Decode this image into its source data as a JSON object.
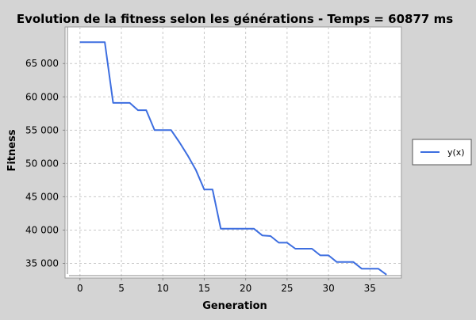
{
  "chart_data": {
    "type": "line",
    "title": "Evolution de la fitness selon les générations - Temps = 60877 ms",
    "xlabel": "Generation",
    "ylabel": "Fitness",
    "xlim": [
      -1.8,
      38.8
    ],
    "ylim": [
      32800,
      70500
    ],
    "xticks": [
      0,
      5,
      10,
      15,
      20,
      25,
      30,
      35
    ],
    "yticks": [
      35000,
      40000,
      45000,
      50000,
      55000,
      60000,
      65000
    ],
    "ytick_labels": [
      "35 000",
      "40 000",
      "45 000",
      "50 000",
      "55 000",
      "60 000",
      "65 000"
    ],
    "grid": true,
    "legend_position": "right",
    "series": [
      {
        "name": "y(x)",
        "color": "#3d6ee0",
        "x": [
          0,
          1,
          2,
          3,
          4,
          5,
          6,
          7,
          8,
          9,
          10,
          11,
          12,
          13,
          14,
          15,
          16,
          17,
          18,
          19,
          20,
          21,
          22,
          23,
          24,
          25,
          26,
          27,
          28,
          29,
          30,
          31,
          32,
          33,
          34,
          35,
          36,
          37
        ],
        "y": [
          68200,
          68200,
          68200,
          68200,
          59100,
          59100,
          59100,
          58000,
          58000,
          55000,
          55000,
          55000,
          53200,
          51200,
          49000,
          46100,
          46100,
          40200,
          40200,
          40200,
          40200,
          40200,
          39200,
          39100,
          38100,
          38100,
          37200,
          37200,
          37200,
          36200,
          36200,
          35200,
          35200,
          35200,
          34200,
          34200,
          34200,
          33300
        ]
      }
    ]
  }
}
